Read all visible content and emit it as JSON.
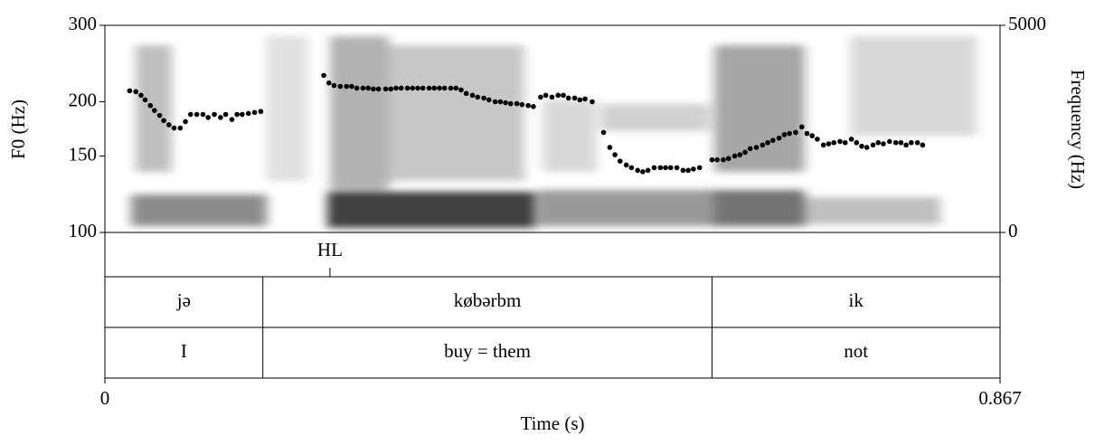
{
  "chart_data": {
    "type": "pitch",
    "ylabel": "F0 (Hz)",
    "y2label": "Frequency (Hz)",
    "xlabel": "Time (s)",
    "xlim": [
      0,
      0.867
    ],
    "xticks": [
      0,
      0.867
    ],
    "ylim": [
      100,
      300
    ],
    "yticks": [
      100,
      150,
      200,
      300
    ],
    "log_scale": true,
    "y2lim": [
      0,
      5000
    ],
    "y2ticks": [
      0,
      5000
    ],
    "color": "#000000",
    "x": [
      0.024,
      0.03,
      0.035,
      0.039,
      0.044,
      0.048,
      0.053,
      0.057,
      0.062,
      0.067,
      0.073,
      0.078,
      0.083,
      0.089,
      0.095,
      0.1,
      0.106,
      0.112,
      0.117,
      0.123,
      0.128,
      0.133,
      0.139,
      0.145,
      0.151,
      0.212,
      0.217,
      0.222,
      0.228,
      0.234,
      0.239,
      0.244,
      0.25,
      0.255,
      0.26,
      0.265,
      0.272,
      0.277,
      0.282,
      0.287,
      0.293,
      0.298,
      0.303,
      0.308,
      0.314,
      0.319,
      0.324,
      0.329,
      0.335,
      0.34,
      0.345,
      0.35,
      0.356,
      0.361,
      0.367,
      0.372,
      0.378,
      0.383,
      0.388,
      0.393,
      0.399,
      0.404,
      0.41,
      0.415,
      0.422,
      0.427,
      0.433,
      0.439,
      0.444,
      0.449,
      0.455,
      0.46,
      0.465,
      0.472,
      0.483,
      0.489,
      0.494,
      0.499,
      0.505,
      0.51,
      0.516,
      0.521,
      0.526,
      0.532,
      0.538,
      0.543,
      0.548,
      0.554,
      0.56,
      0.565,
      0.57,
      0.576,
      0.588,
      0.593,
      0.599,
      0.604,
      0.61,
      0.615,
      0.62,
      0.625,
      0.631,
      0.637,
      0.642,
      0.647,
      0.653,
      0.658,
      0.663,
      0.669,
      0.675,
      0.68,
      0.685,
      0.69,
      0.696,
      0.701,
      0.706,
      0.712,
      0.717,
      0.723,
      0.728,
      0.733,
      0.738,
      0.744,
      0.749,
      0.754,
      0.76,
      0.766,
      0.771,
      0.776,
      0.781,
      0.787,
      0.792
    ],
    "values": [
      212,
      211,
      207,
      202,
      196,
      191,
      186,
      181,
      177,
      174,
      174,
      180,
      187,
      187,
      187,
      184,
      187,
      184,
      187,
      182,
      187,
      187,
      188,
      189,
      190,
      230,
      221,
      218,
      217,
      217,
      217,
      215,
      215,
      215,
      214,
      214,
      214,
      214,
      215,
      215,
      215,
      215,
      215,
      215,
      215,
      215,
      215,
      215,
      215,
      215,
      213,
      209,
      207,
      205,
      204,
      202,
      200,
      200,
      199,
      198,
      198,
      197,
      196,
      195,
      205,
      207,
      205,
      207,
      207,
      204,
      204,
      202,
      203,
      200,
      170,
      157,
      151,
      146,
      143,
      141,
      139,
      138,
      139,
      141,
      141,
      141,
      141,
      141,
      139,
      139,
      140,
      141,
      147,
      147,
      147,
      148,
      150,
      151,
      153,
      156,
      157,
      159,
      161,
      163,
      165,
      168,
      169,
      170,
      175,
      169,
      167,
      164,
      159,
      160,
      161,
      162,
      161,
      164,
      161,
      158,
      157,
      159,
      161,
      160,
      162,
      161,
      161,
      159,
      161,
      161,
      159
    ],
    "tiers": [
      {
        "points": [
          0.218
        ],
        "labels": [
          "HL"
        ]
      },
      {
        "boundaries": [
          0.153,
          0.588
        ],
        "labels": [
          "jə",
          "købərbm",
          "ik"
        ]
      },
      {
        "boundaries": [
          0.153,
          0.588
        ],
        "labels": [
          "I",
          "buy = them",
          "not"
        ]
      }
    ]
  }
}
